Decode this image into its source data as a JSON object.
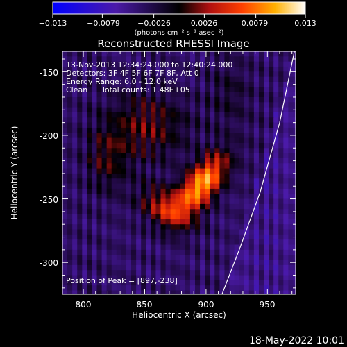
{
  "chart_data": {
    "type": "heatmap",
    "title": "Reconstructed RHESSI Image",
    "xlabel": "Heliocentric X (arcsec)",
    "ylabel": "Heliocentric Y (arcsec)",
    "xlim": [
      783,
      973
    ],
    "ylim": [
      -325,
      -134
    ],
    "x_ticks": [
      800,
      850,
      900,
      950
    ],
    "y_ticks": [
      -150,
      -200,
      -250,
      -300
    ],
    "colorbar": {
      "min": -0.013,
      "max": 0.013,
      "tick_values": [
        -0.013,
        -0.0079,
        -0.0026,
        0.0026,
        0.0079,
        0.013
      ],
      "tick_labels": [
        "−0.013",
        "−0.0079",
        "−0.0026",
        "0.0026",
        "0.0079",
        "0.013"
      ],
      "unit_label": "(photons cm⁻² s⁻¹ asec⁻²)"
    },
    "peak": {
      "x": 897,
      "y": -238,
      "value": 0.013
    },
    "sources": [
      {
        "x": 897,
        "y": -238,
        "sx": 9,
        "sy": 19,
        "rot": -40,
        "amp": 0.0125
      },
      {
        "x": 868,
        "y": -258,
        "sx": 16,
        "sy": 10,
        "rot": -30,
        "amp": 0.007
      },
      {
        "x": 852,
        "y": -193,
        "sx": 24,
        "sy": 19,
        "rot": 0,
        "amp": 0.0045
      },
      {
        "x": 820,
        "y": -220,
        "sx": 12,
        "sy": 18,
        "rot": 0,
        "amp": 0.0035
      },
      {
        "x": 920,
        "y": -168,
        "sx": 12,
        "sy": 20,
        "rot": 0,
        "amp": 0.0022
      }
    ],
    "limb_curve": [
      [
        972,
        -134
      ],
      [
        960,
        -190
      ],
      [
        944,
        -245
      ],
      [
        927,
        -290
      ],
      [
        913,
        -325
      ]
    ],
    "annotations": {
      "time_range": "13-Nov-2013 12:34:24.000 to 12:40:24.000",
      "detectors": "Detectors: 3F 4F 5F 6F 7F 8F, Att 0",
      "energy": "Energy Range: 6.0 - 12.0 keV",
      "method": "Clean",
      "counts": "Total counts: 1.48E+05",
      "peak_text": "Position of Peak = [897,-238]"
    },
    "footer_date": "18-May-2022 10:01"
  }
}
